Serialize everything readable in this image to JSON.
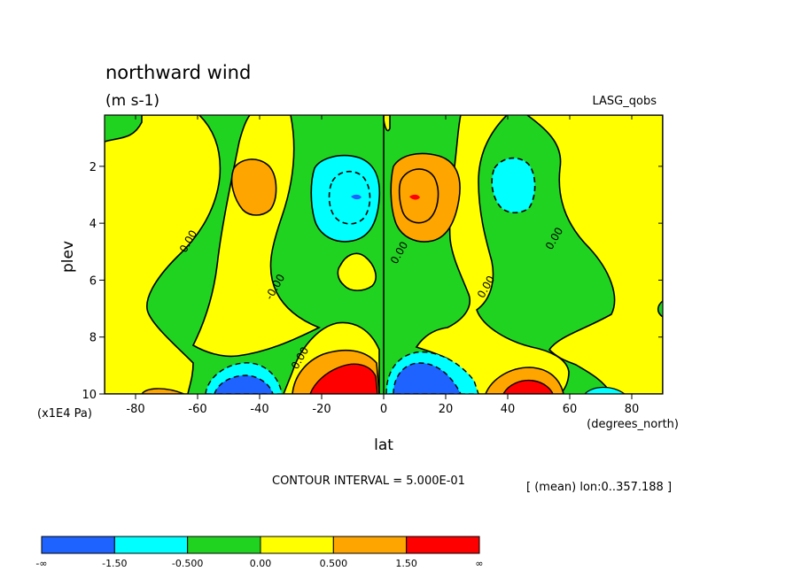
{
  "header": {
    "title": "northward wind",
    "units": "(m s-1)",
    "dataset": "LASG_qobs"
  },
  "chart_data": {
    "type": "heatmap",
    "title": "northward wind",
    "subtitle": "(m s-1)",
    "xlabel": "lat",
    "x_units": "(degrees_north)",
    "ylabel": "plev",
    "y_units": "(x1E4 Pa)",
    "xlim": [
      -90,
      90
    ],
    "ylim": [
      0.2,
      10
    ],
    "y_inverted": true,
    "xticks": [
      -80,
      -60,
      -40,
      -20,
      0,
      20,
      40,
      60,
      80
    ],
    "xtick_labels": [
      "-80",
      "-60",
      "-40",
      "-20",
      "0",
      "20",
      "40",
      "60",
      "80"
    ],
    "yticks": [
      2,
      4,
      6,
      8,
      10
    ],
    "ytick_labels": [
      "2",
      "4",
      "6",
      "8",
      "10"
    ],
    "contour_interval": "CONTOUR INTERVAL = 5.000E-01",
    "averaging_note": "[ (mean) lon:0..357.188 ]",
    "contour_labels": [
      {
        "text": "0.00",
        "x": -62,
        "y": 4.7
      },
      {
        "text": "-0.00",
        "x": -34,
        "y": 6.3
      },
      {
        "text": "0.00",
        "x": -26,
        "y": 8.8
      },
      {
        "text": "0.00",
        "x": 6,
        "y": 5.1
      },
      {
        "text": "0.00",
        "x": 34,
        "y": 6.3
      },
      {
        "text": "0.00",
        "x": 56,
        "y": 4.6
      }
    ],
    "levels": [
      {
        "label": "-∞",
        "range": "< -1.50",
        "color": "#1e63ff"
      },
      {
        "label": "-1.50",
        "range": "-1.50 to -0.50",
        "color": "#00ffff"
      },
      {
        "label": "-0.500",
        "range": "-0.50 to 0.00",
        "color": "#21d321"
      },
      {
        "label": "0.00",
        "range": "0.00 to 0.50",
        "color": "#ffff00"
      },
      {
        "label": "0.500",
        "range": "0.50 to 1.50",
        "color": "#ffa500"
      },
      {
        "label": "1.50",
        "range": "> 1.50",
        "color": "#ff0000"
      },
      {
        "label": "∞",
        "range": "",
        "color": ""
      }
    ],
    "features": [
      {
        "kind": "max",
        "x": -42,
        "y": 2.8,
        "value_range": "0.50 to 1.50",
        "color": "#ffa500"
      },
      {
        "kind": "min",
        "x": -10,
        "y": 3.0,
        "value_range": "-1.50 to -0.50",
        "color": "#00ffff"
      },
      {
        "kind": "max",
        "x": 9,
        "y": 3.0,
        "value_range": "0.50 to 1.50",
        "color": "#ffa500"
      },
      {
        "kind": "min",
        "x": 40,
        "y": 2.6,
        "value_range": "-1.50 to -0.50",
        "color": "#00ffff"
      },
      {
        "kind": "min",
        "x": -46,
        "y": 9.7,
        "value_range": "< -1.50",
        "color": "#1e63ff"
      },
      {
        "kind": "max",
        "x": -12,
        "y": 9.6,
        "value_range": "> 1.50",
        "color": "#ff0000"
      },
      {
        "kind": "min",
        "x": 12,
        "y": 9.6,
        "value_range": "< -1.50",
        "color": "#1e63ff"
      },
      {
        "kind": "max",
        "x": 44,
        "y": 9.8,
        "value_range": "> 1.50",
        "color": "#ff0000"
      }
    ],
    "grid": false
  }
}
